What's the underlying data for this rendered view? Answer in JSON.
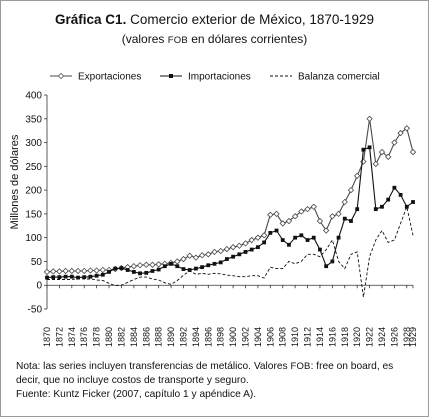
{
  "title": {
    "bold": "Gráfica C1.",
    "rest": "Comercio exterior de México, 1870-1929"
  },
  "subtitle": {
    "before": "(valores ",
    "fob": "FOB",
    "after": " en dólares corrientes)"
  },
  "notes": {
    "line1_before": "Nota: las series incluyen transferencias de metálico. Valores ",
    "line1_fob": "FOB",
    "line1_after": ": free on board, es",
    "line2": "decir, que no incluye costos de transporte y seguro.",
    "line3": "Fuente: Kuntz Ficker (2007, capítulo 1 y apéndice A)."
  },
  "chart_data": {
    "type": "line",
    "ylabel": "Millones de dólares",
    "xlabel": "",
    "ylim": [
      -50,
      400
    ],
    "yticks": [
      -50,
      0,
      50,
      100,
      150,
      200,
      250,
      300,
      350,
      400
    ],
    "xlim": [
      1870,
      1929
    ],
    "xticks": [
      "1870",
      "1872",
      "1874",
      "1876",
      "1878",
      "1880",
      "1882",
      "1884",
      "1886",
      "1888",
      "1890",
      "1892",
      "1894",
      "1896",
      "1898",
      "1900",
      "1902",
      "1904",
      "1906",
      "1908",
      "1910",
      "1912",
      "1914",
      "1916",
      "1918",
      "1920",
      "1922",
      "1924",
      "1926",
      "1928",
      "1929"
    ],
    "legend_position": "top",
    "grid": false,
    "x": [
      1870,
      1871,
      1872,
      1873,
      1874,
      1875,
      1876,
      1877,
      1878,
      1879,
      1880,
      1881,
      1882,
      1883,
      1884,
      1885,
      1886,
      1887,
      1888,
      1889,
      1890,
      1891,
      1892,
      1893,
      1894,
      1895,
      1896,
      1897,
      1898,
      1899,
      1900,
      1901,
      1902,
      1903,
      1904,
      1905,
      1906,
      1907,
      1908,
      1909,
      1910,
      1911,
      1912,
      1913,
      1914,
      1915,
      1916,
      1917,
      1918,
      1919,
      1920,
      1921,
      1922,
      1923,
      1924,
      1925,
      1926,
      1927,
      1928,
      1929
    ],
    "series": [
      {
        "name": "Exportaciones",
        "marker": "diamond",
        "values": [
          28,
          29,
          29,
          30,
          30,
          30,
          30,
          31,
          31,
          32,
          32,
          34,
          36,
          38,
          40,
          42,
          43,
          43,
          44,
          45,
          47,
          50,
          55,
          62,
          58,
          63,
          65,
          70,
          72,
          76,
          80,
          83,
          88,
          95,
          100,
          105,
          148,
          150,
          130,
          135,
          145,
          155,
          160,
          165,
          135,
          115,
          145,
          150,
          175,
          200,
          230,
          260,
          350,
          255,
          280,
          270,
          300,
          320,
          330,
          280
        ],
        "dash": "none",
        "color": "#4a4a4a"
      },
      {
        "name": "Importaciones",
        "marker": "square",
        "values": [
          16,
          17,
          17,
          18,
          18,
          16,
          17,
          18,
          20,
          22,
          28,
          35,
          36,
          32,
          28,
          25,
          26,
          30,
          33,
          40,
          45,
          40,
          34,
          32,
          35,
          38,
          42,
          45,
          48,
          55,
          60,
          65,
          70,
          75,
          80,
          90,
          110,
          115,
          95,
          85,
          100,
          105,
          95,
          100,
          75,
          40,
          50,
          100,
          140,
          135,
          160,
          285,
          290,
          160,
          165,
          180,
          205,
          190,
          165,
          175
        ],
        "dash": "none",
        "color": "#111111"
      },
      {
        "name": "Balanza comercial",
        "marker": "none",
        "values": [
          12,
          12,
          12,
          12,
          12,
          14,
          13,
          13,
          11,
          10,
          4,
          -1,
          0,
          6,
          12,
          17,
          17,
          13,
          11,
          5,
          2,
          10,
          21,
          30,
          23,
          25,
          23,
          25,
          24,
          21,
          20,
          18,
          18,
          20,
          20,
          15,
          38,
          35,
          35,
          50,
          45,
          50,
          65,
          65,
          60,
          75,
          95,
          50,
          35,
          65,
          70,
          -25,
          60,
          95,
          115,
          90,
          95,
          130,
          165,
          105
        ],
        "dash": "3,2",
        "color": "#111111"
      }
    ]
  }
}
